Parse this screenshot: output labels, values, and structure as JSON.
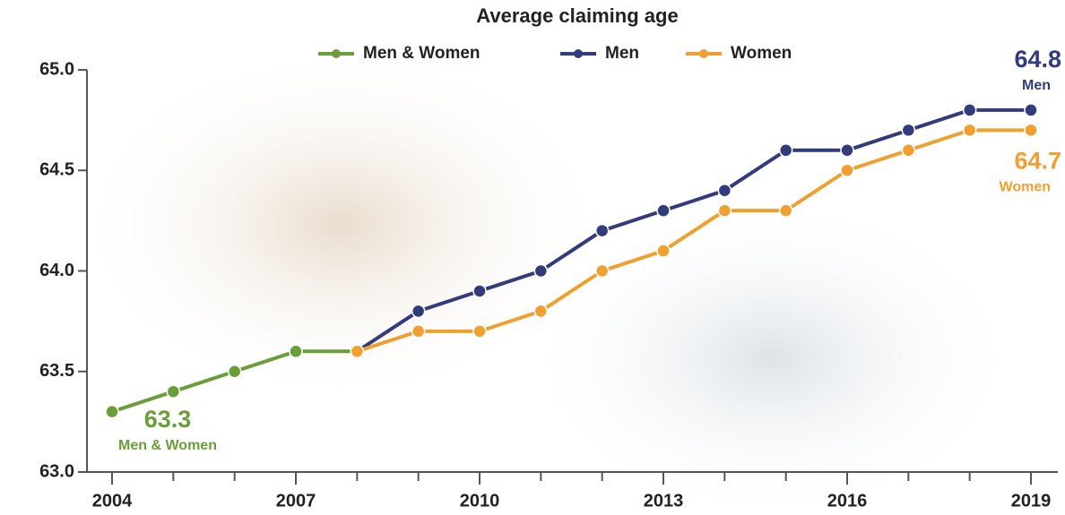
{
  "chart_data": {
    "type": "line",
    "title": "Average claiming age",
    "x": [
      2004,
      2005,
      2006,
      2007,
      2008,
      2009,
      2010,
      2011,
      2012,
      2013,
      2014,
      2015,
      2016,
      2017,
      2018,
      2019
    ],
    "series": [
      {
        "name": "Men & Women",
        "color": "#6a9e3a",
        "values": [
          63.3,
          63.4,
          63.5,
          63.6,
          63.6,
          null,
          null,
          null,
          null,
          null,
          null,
          null,
          null,
          null,
          null,
          null
        ]
      },
      {
        "name": "Men",
        "color": "#323c7c",
        "values": [
          null,
          null,
          null,
          null,
          63.6,
          63.8,
          63.9,
          64.0,
          64.2,
          64.3,
          64.4,
          64.6,
          64.6,
          64.7,
          64.8,
          64.8
        ]
      },
      {
        "name": "Women",
        "color": "#f0a030",
        "values": [
          null,
          null,
          null,
          null,
          63.6,
          63.7,
          63.7,
          63.8,
          64.0,
          64.1,
          64.3,
          64.3,
          64.5,
          64.6,
          64.7,
          64.7
        ]
      }
    ],
    "xlim": [
      2004,
      2019
    ],
    "xticks": [
      2004,
      2007,
      2010,
      2013,
      2016,
      2019
    ],
    "ylim": [
      63,
      65
    ],
    "yticks": [
      {
        "value": 63,
        "label": "63.0"
      },
      63.5,
      {
        "value": 64,
        "label": "64.0"
      },
      64.5,
      {
        "value": 65,
        "label": "65.0"
      }
    ],
    "legend": "top"
  }
}
